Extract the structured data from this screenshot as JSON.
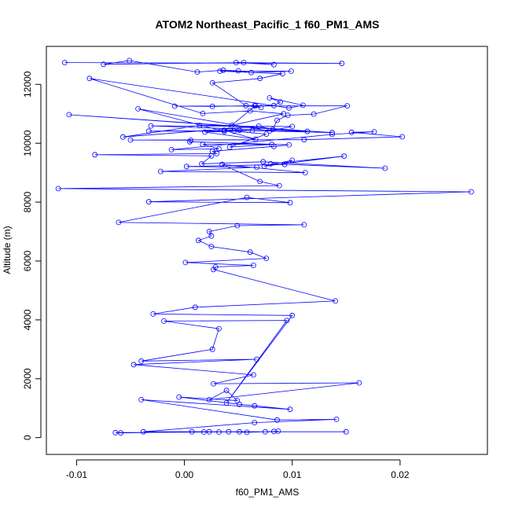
{
  "chart_data": {
    "type": "line",
    "title": "ATOM2 Northeast_Pacific_1 f60_PM1_AMS",
    "xlabel": "f60_PM1_AMS",
    "ylabel": "Altitude (m)",
    "xlim": [
      -0.0128,
      0.0281
    ],
    "ylim": [
      -570,
      13290
    ],
    "xticks": [
      -0.01,
      0.0,
      0.01,
      0.02
    ],
    "xtick_labels": [
      "-0.01",
      "0.00",
      "0.01",
      "0.02"
    ],
    "yticks": [
      0,
      2000,
      4000,
      6000,
      8000,
      10000,
      12000
    ],
    "ytick_labels": [
      "0",
      "2000",
      "4000",
      "6000",
      "8000",
      "10000",
      "12000"
    ],
    "grid": false,
    "legend": "none",
    "color": "#0000ff",
    "series": [
      {
        "x": [
          -0.0111,
          0.0146,
          0.0048,
          0.0083,
          0.0055,
          -0.0075,
          -0.0051,
          0.0012,
          0.0036,
          0.005,
          0.0062,
          0.0099,
          0.0033,
          0.0091,
          0.007,
          0.0026,
          0.0057,
          0.0071,
          0.0065,
          0.0083,
          0.0089,
          0.0079,
          0.011,
          0.0097,
          -0.0088,
          0.0017,
          0.0061,
          0.0092,
          0.0044,
          0.0014,
          -0.0057,
          0.0069,
          0.0082,
          0.0086,
          0.0096,
          0.012,
          0.0151,
          -0.0009,
          0.0026,
          0.0066,
          0.0037,
          -0.0043,
          0.0079,
          0.01,
          -0.0031,
          0.0114,
          -0.0107,
          0.0137,
          0.0051,
          0.0037,
          0.0066,
          0.0019,
          0.0063,
          -0.0033,
          0.0046,
          0.0076,
          0.0042,
          0.0081,
          0.0017,
          0.0032,
          -0.0012,
          0.0137,
          0.0176,
          0.0155,
          0.0202,
          0.0111,
          -0.005,
          0.0006,
          0.0005,
          0.0097,
          0.0083,
          0.0026,
          0.003,
          -0.0083,
          0.0025,
          0.0016,
          0.0073,
          0.0186,
          0.008,
          0.0148,
          0.0074,
          0.01,
          0.0093,
          0.0002,
          0.0067,
          -0.0022,
          0.0112,
          0.0035,
          0.007,
          0.0088,
          -0.0117,
          0.0266,
          -0.0033,
          0.0098,
          0.0058,
          -0.0061,
          0.0111,
          0.0049,
          0.0023,
          0.0025,
          0.0013,
          0.0025,
          0.0061,
          0.0076,
          0.0001,
          0.0064,
          0.0029,
          0.0027,
          0.014,
          0.001,
          -0.0029,
          0.01,
          0.0039,
          0.0095,
          -0.0019,
          0.0032,
          0.0026,
          -0.004,
          0.0067,
          -0.0047,
          0.0064,
          0.0027,
          0.0162,
          0.0023,
          0.0039,
          0.0049,
          -0.0005,
          0.0051,
          0.0065,
          0.0098,
          -0.004,
          0.0086,
          0.0141,
          0.0065,
          -0.0038,
          0.015,
          0.0023,
          0.0051,
          -0.0064,
          -0.0059,
          0.0007,
          0.0018,
          0.0032,
          0.0041,
          0.0058,
          0.0075,
          0.0083,
          0.0087
        ],
        "y": [
          12740,
          12710,
          12740,
          12670,
          12740,
          12680,
          12810,
          12420,
          12480,
          12460,
          12400,
          12450,
          12450,
          12360,
          12200,
          12050,
          11280,
          11210,
          11270,
          11280,
          11400,
          11540,
          11290,
          11200,
          12200,
          11010,
          11100,
          11000,
          10610,
          10600,
          10210,
          10580,
          10470,
          10780,
          10950,
          10990,
          11270,
          11260,
          11250,
          11280,
          10400,
          11170,
          10420,
          10570,
          10590,
          10400,
          10970,
          10360,
          10440,
          10440,
          10140,
          10380,
          10430,
          10410,
          10410,
          10310,
          9870,
          9960,
          9960,
          9810,
          9780,
          10300,
          10390,
          10370,
          10220,
          10120,
          10110,
          10100,
          10050,
          9950,
          9890,
          9730,
          9650,
          9610,
          9570,
          9300,
          9370,
          9150,
          9300,
          9560,
          9220,
          9420,
          9280,
          9210,
          9180,
          9040,
          9000,
          9280,
          8700,
          8560,
          8460,
          8350,
          8010,
          7980,
          8160,
          7310,
          7230,
          7200,
          7000,
          6850,
          6700,
          6490,
          6300,
          6090,
          5950,
          5850,
          5800,
          5710,
          4640,
          4430,
          4200,
          4150,
          1180,
          3980,
          3960,
          3700,
          3000,
          2600,
          2660,
          2480,
          2130,
          1830,
          1860,
          1290,
          1600,
          1260,
          1380,
          1130,
          1080,
          960,
          1290,
          600,
          620,
          510,
          200,
          200,
          200,
          200,
          170,
          160,
          200,
          190,
          190,
          200,
          180,
          200,
          210,
          220
        ]
      }
    ]
  }
}
